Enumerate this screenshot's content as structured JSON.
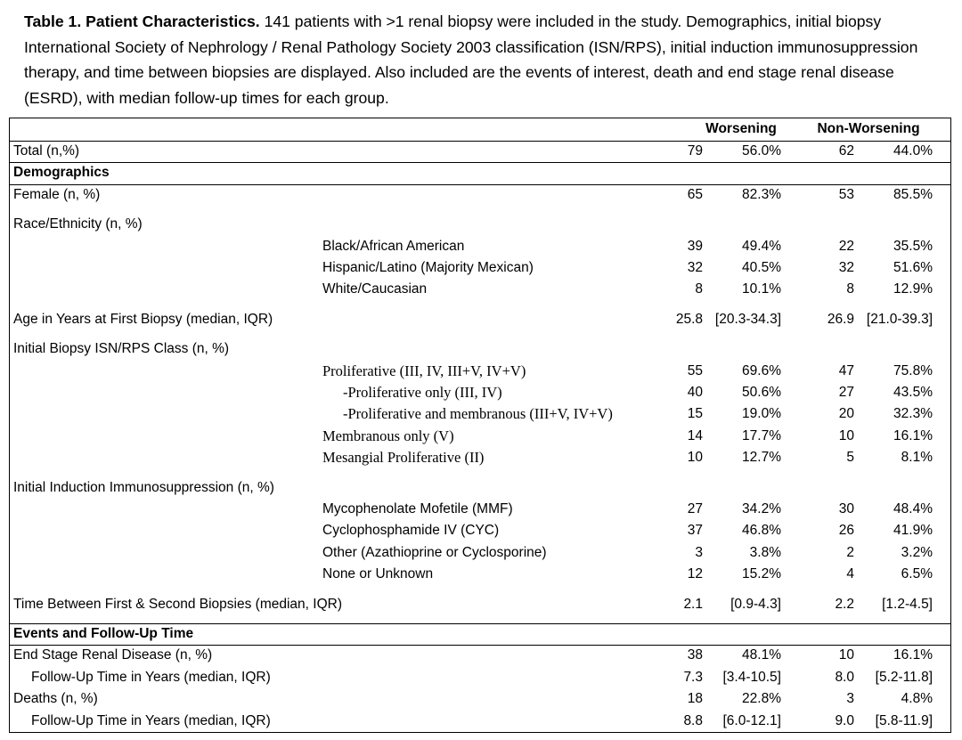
{
  "caption": {
    "label": "Table 1. Patient Characteristics.",
    "text": "141 patients with >1 renal biopsy were included in the study.  Demographics, initial biopsy International Society of Nephrology / Renal Pathology Society 2003 classification (ISN/RPS), initial induction immunosuppression therapy, and time between biopsies are displayed.  Also included are the events of interest, death and end stage renal disease (ESRD), with median follow-up times for each group."
  },
  "table": {
    "headers": [
      "Worsening",
      "Non-Worsening"
    ],
    "rows": [
      {
        "label": "Total (n,%)",
        "cells": [
          "79",
          "56.0%",
          "62",
          "44.0%"
        ]
      },
      {
        "section": "Demographics"
      },
      {
        "label": "Female (n, %)",
        "cells": [
          "65",
          "82.3%",
          "53",
          "85.5%"
        ]
      },
      {
        "label": "Race/Ethnicity (n, %)"
      },
      {
        "item": "Black/African American",
        "cells": [
          "39",
          "49.4%",
          "22",
          "35.5%"
        ]
      },
      {
        "item": "Hispanic/Latino (Majority Mexican)",
        "cells": [
          "32",
          "40.5%",
          "32",
          "51.6%"
        ]
      },
      {
        "item": "White/Caucasian",
        "cells": [
          "8",
          "10.1%",
          "8",
          "12.9%"
        ]
      },
      {
        "label": "Age in Years at First Biopsy (median, IQR)",
        "cells": [
          "25.8",
          "[20.3-34.3]",
          "26.9",
          "[21.0-39.3]"
        ]
      },
      {
        "label": "Initial Biopsy ISN/RPS Class (n, %)"
      },
      {
        "item": "Proliferative (III, IV, III+V, IV+V)",
        "serif": true,
        "cells": [
          "55",
          "69.6%",
          "47",
          "75.8%"
        ]
      },
      {
        "item": "-Proliferative only (III, IV)",
        "serif": true,
        "sub": true,
        "cells": [
          "40",
          "50.6%",
          "27",
          "43.5%"
        ]
      },
      {
        "item": "-Proliferative and membranous (III+V, IV+V)",
        "serif": true,
        "sub": true,
        "cells": [
          "15",
          "19.0%",
          "20",
          "32.3%"
        ]
      },
      {
        "item": "Membranous only (V)",
        "serif": true,
        "cells": [
          "14",
          "17.7%",
          "10",
          "16.1%"
        ]
      },
      {
        "item": "Mesangial Proliferative (II)",
        "serif": true,
        "cells": [
          "10",
          "12.7%",
          "5",
          "8.1%"
        ]
      },
      {
        "label": "Initial Induction Immunosuppression (n, %)"
      },
      {
        "item": "Mycophenolate Mofetile (MMF)",
        "cells": [
          "27",
          "34.2%",
          "30",
          "48.4%"
        ]
      },
      {
        "item": "Cyclophosphamide IV (CYC)",
        "cells": [
          "37",
          "46.8%",
          "26",
          "41.9%"
        ]
      },
      {
        "item": "Other (Azathioprine or Cyclosporine)",
        "cells": [
          "3",
          "3.8%",
          "2",
          "3.2%"
        ]
      },
      {
        "item": "None or Unknown",
        "cells": [
          "12",
          "15.2%",
          "4",
          "6.5%"
        ]
      },
      {
        "label": "Time Between First & Second Biopsies (median, IQR)",
        "cells": [
          "2.1",
          "[0.9-4.3]",
          "2.2",
          "[1.2-4.5]"
        ]
      },
      {
        "section": "Events and Follow-Up Time"
      },
      {
        "label": "End Stage Renal Disease (n, %)",
        "cells": [
          "38",
          "48.1%",
          "10",
          "16.1%"
        ]
      },
      {
        "label": "Follow-Up Time in Years (median, IQR)",
        "sub": true,
        "cells": [
          "7.3",
          "[3.4-10.5]",
          "8.0",
          "[5.2-11.8]"
        ]
      },
      {
        "label": "Deaths (n, %)",
        "cells": [
          "18",
          "22.8%",
          "3",
          "4.8%"
        ]
      },
      {
        "label": "Follow-Up Time in Years (median, IQR)",
        "sub": true,
        "cells": [
          "8.8",
          "[6.0-12.1]",
          "9.0",
          "[5.8-11.9]"
        ]
      }
    ]
  }
}
